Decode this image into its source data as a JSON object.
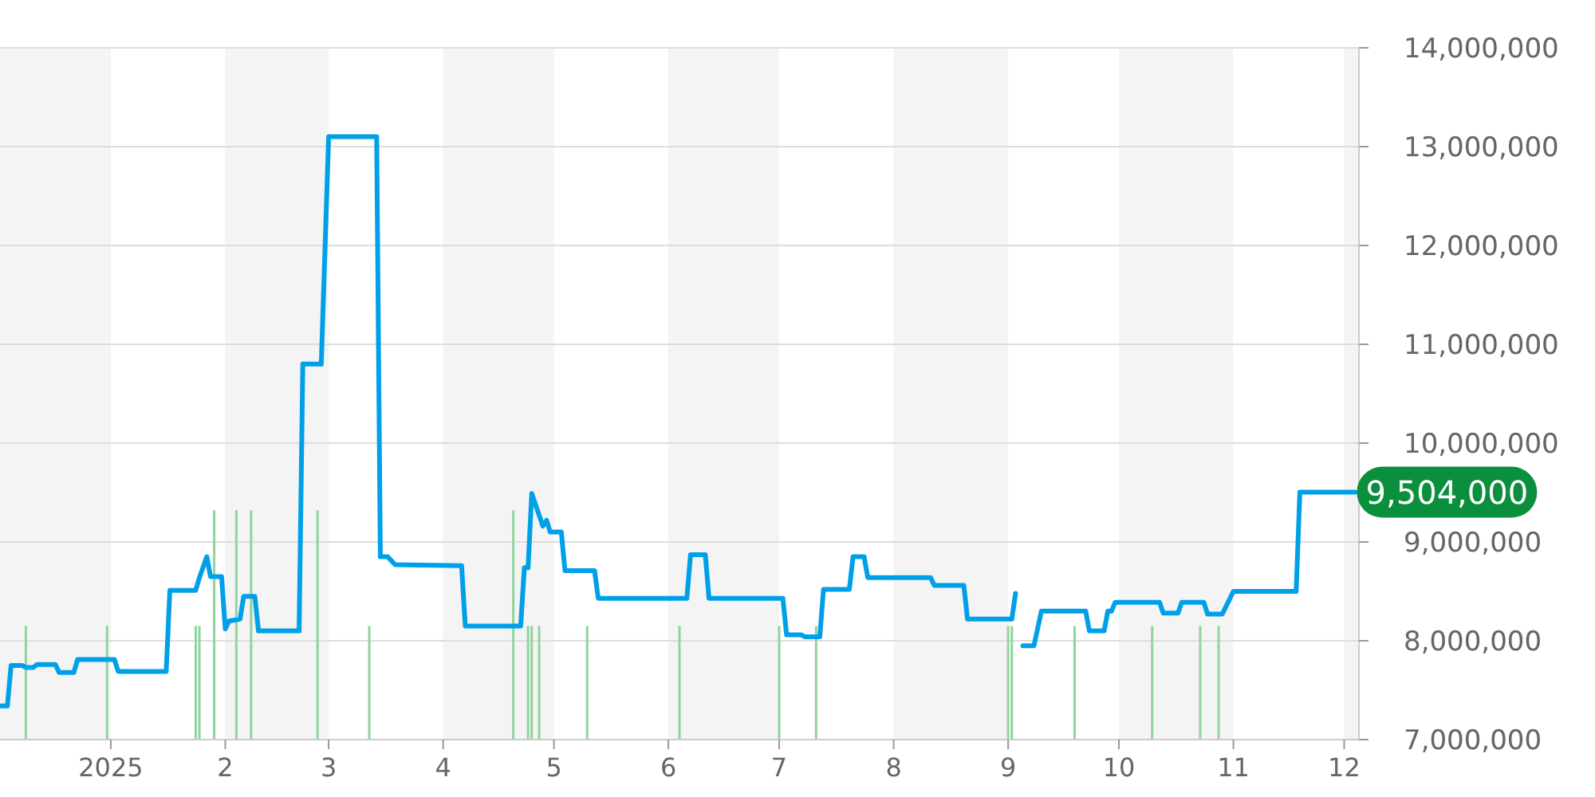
{
  "chart_data": {
    "type": "line",
    "xlim": [
      "2024-12-02",
      "2025-12-05"
    ],
    "xticks": [
      {
        "value": "2025-01-01",
        "label": "2025"
      },
      {
        "value": "2025-02-01",
        "label": "2"
      },
      {
        "value": "2025-03-01",
        "label": "3"
      },
      {
        "value": "2025-04-01",
        "label": "4"
      },
      {
        "value": "2025-05-01",
        "label": "5"
      },
      {
        "value": "2025-06-01",
        "label": "6"
      },
      {
        "value": "2025-07-01",
        "label": "7"
      },
      {
        "value": "2025-08-01",
        "label": "8"
      },
      {
        "value": "2025-09-01",
        "label": "9"
      },
      {
        "value": "2025-10-01",
        "label": "10"
      },
      {
        "value": "2025-11-01",
        "label": "11"
      },
      {
        "value": "2025-12-01",
        "label": "12"
      }
    ],
    "ylim": [
      7000000,
      14000000
    ],
    "yticks": [
      {
        "value": 7000000,
        "label": "7,000,000"
      },
      {
        "value": 8000000,
        "label": "8,000,000"
      },
      {
        "value": 9000000,
        "label": "9,000,000"
      },
      {
        "value": 10000000,
        "label": "10,000,000"
      },
      {
        "value": 11000000,
        "label": "11,000,000"
      },
      {
        "value": 12000000,
        "label": "12,000,000"
      },
      {
        "value": 13000000,
        "label": "13,000,000"
      },
      {
        "value": 14000000,
        "label": "14,000,000"
      }
    ],
    "grid": "y",
    "marker": "none",
    "bands": [
      {
        "axis": "x",
        "from": "2024-12-02",
        "to": "2025-01-01",
        "color": "#f4f4f4"
      },
      {
        "axis": "x",
        "from": "2025-02-01",
        "to": "2025-03-01",
        "color": "#f4f4f4"
      },
      {
        "axis": "x",
        "from": "2025-04-01",
        "to": "2025-05-01",
        "color": "#f4f4f4"
      },
      {
        "axis": "x",
        "from": "2025-06-01",
        "to": "2025-07-01",
        "color": "#f4f4f4"
      },
      {
        "axis": "x",
        "from": "2025-08-01",
        "to": "2025-09-01",
        "color": "#f4f4f4"
      },
      {
        "axis": "x",
        "from": "2025-10-01",
        "to": "2025-11-01",
        "color": "#f4f4f4"
      },
      {
        "axis": "x",
        "from": "2025-12-01",
        "to": "2025-12-05",
        "color": "#f4f4f4"
      }
    ],
    "annotations": [
      {
        "text": "9,504,000",
        "x": "2025-12-04",
        "y": 9504000
      }
    ],
    "series": [
      {
        "type": "bar",
        "color": "#8fd49c",
        "x": [
          "2024-12-09",
          "2024-12-31",
          "2025-01-24",
          "2025-01-25",
          "2025-01-29",
          "2025-02-04",
          "2025-02-08",
          "2025-02-26",
          "2025-03-12",
          "2025-04-20",
          "2025-04-24",
          "2025-04-25",
          "2025-04-27",
          "2025-05-10",
          "2025-06-04",
          "2025-07-01",
          "2025-07-11",
          "2025-09-01",
          "2025-09-02",
          "2025-09-19",
          "2025-10-10",
          "2025-10-23",
          "2025-10-28"
        ],
        "values": [
          8150000,
          8150000,
          8150000,
          8150000,
          9320000,
          9320000,
          9320000,
          9320000,
          8150000,
          9320000,
          8150000,
          8150000,
          8150000,
          8150000,
          8150000,
          8150000,
          8150000,
          8150000,
          8150000,
          8150000,
          8150000,
          8150000,
          8150000
        ]
      },
      {
        "color": "#00a0e9",
        "line_style": "solid",
        "x": [
          "2024-12-02",
          "2024-12-04",
          "2024-12-05",
          "2024-12-08",
          "2024-12-09",
          "2024-12-11",
          "2024-12-12",
          "2024-12-17",
          "2024-12-18",
          "2024-12-22",
          "2024-12-23",
          "2025-01-02",
          "2025-01-03",
          "2025-01-16",
          "2025-01-17",
          "2025-01-24",
          "2025-01-25",
          "2025-01-27",
          "2025-01-28",
          "2025-01-31",
          "2025-02-01",
          "2025-02-02",
          "2025-02-05",
          "2025-02-06",
          "2025-02-09",
          "2025-02-10",
          "2025-02-21",
          "2025-02-22",
          "2025-02-27",
          "2025-03-01",
          "2025-03-14",
          "2025-03-15",
          "2025-03-17",
          "2025-03-19",
          "2025-04-06",
          "2025-04-07",
          "2025-04-22",
          "2025-04-23",
          "2025-04-24",
          "2025-04-25",
          "2025-04-28",
          "2025-04-29",
          "2025-04-30",
          "2025-05-03",
          "2025-05-04",
          "2025-05-12",
          "2025-05-13",
          "2025-06-06",
          "2025-06-07",
          "2025-06-11",
          "2025-06-12",
          "2025-07-02",
          "2025-07-03",
          "2025-07-07",
          "2025-07-08",
          "2025-07-12",
          "2025-07-13",
          "2025-07-20",
          "2025-07-21",
          "2025-07-24",
          "2025-07-25",
          "2025-08-11",
          "2025-08-12",
          "2025-08-20",
          "2025-08-21",
          "2025-09-02",
          "2025-09-03",
          "2025-09-04",
          "2025-09-05",
          "2025-09-08",
          "2025-09-10",
          "2025-09-22",
          "2025-09-23",
          "2025-09-27",
          "2025-09-28",
          "2025-09-29",
          "2025-09-30",
          "2025-10-12",
          "2025-10-13",
          "2025-10-17",
          "2025-10-18",
          "2025-10-24",
          "2025-10-25",
          "2025-10-29",
          "2025-11-01",
          "2025-11-18",
          "2025-11-19",
          "2025-12-04"
        ],
        "values": [
          7340000,
          7340000,
          7750000,
          7750000,
          7730000,
          7730000,
          7760000,
          7760000,
          7680000,
          7680000,
          7810000,
          7810000,
          7690000,
          7690000,
          8510000,
          8510000,
          8640000,
          8850000,
          8650000,
          8650000,
          8120000,
          8200000,
          8220000,
          8450000,
          8450000,
          8100000,
          8100000,
          10800000,
          10800000,
          13100000,
          13100000,
          8850000,
          8850000,
          8770000,
          8760000,
          8150000,
          8150000,
          8740000,
          8740000,
          9490000,
          9160000,
          9220000,
          9100000,
          9100000,
          8710000,
          8710000,
          8430000,
          8430000,
          8870000,
          8870000,
          8430000,
          8430000,
          8060000,
          8060000,
          8040000,
          8040000,
          8520000,
          8520000,
          8850000,
          8850000,
          8640000,
          8640000,
          8560000,
          8560000,
          8220000,
          8220000,
          8480000,
          null,
          7950000,
          7950000,
          8300000,
          8300000,
          8100000,
          8100000,
          8300000,
          8300000,
          8390000,
          8390000,
          8280000,
          8280000,
          8390000,
          8390000,
          8270000,
          8270000,
          8500000,
          8500000,
          9504000,
          9504000
        ]
      }
    ]
  }
}
